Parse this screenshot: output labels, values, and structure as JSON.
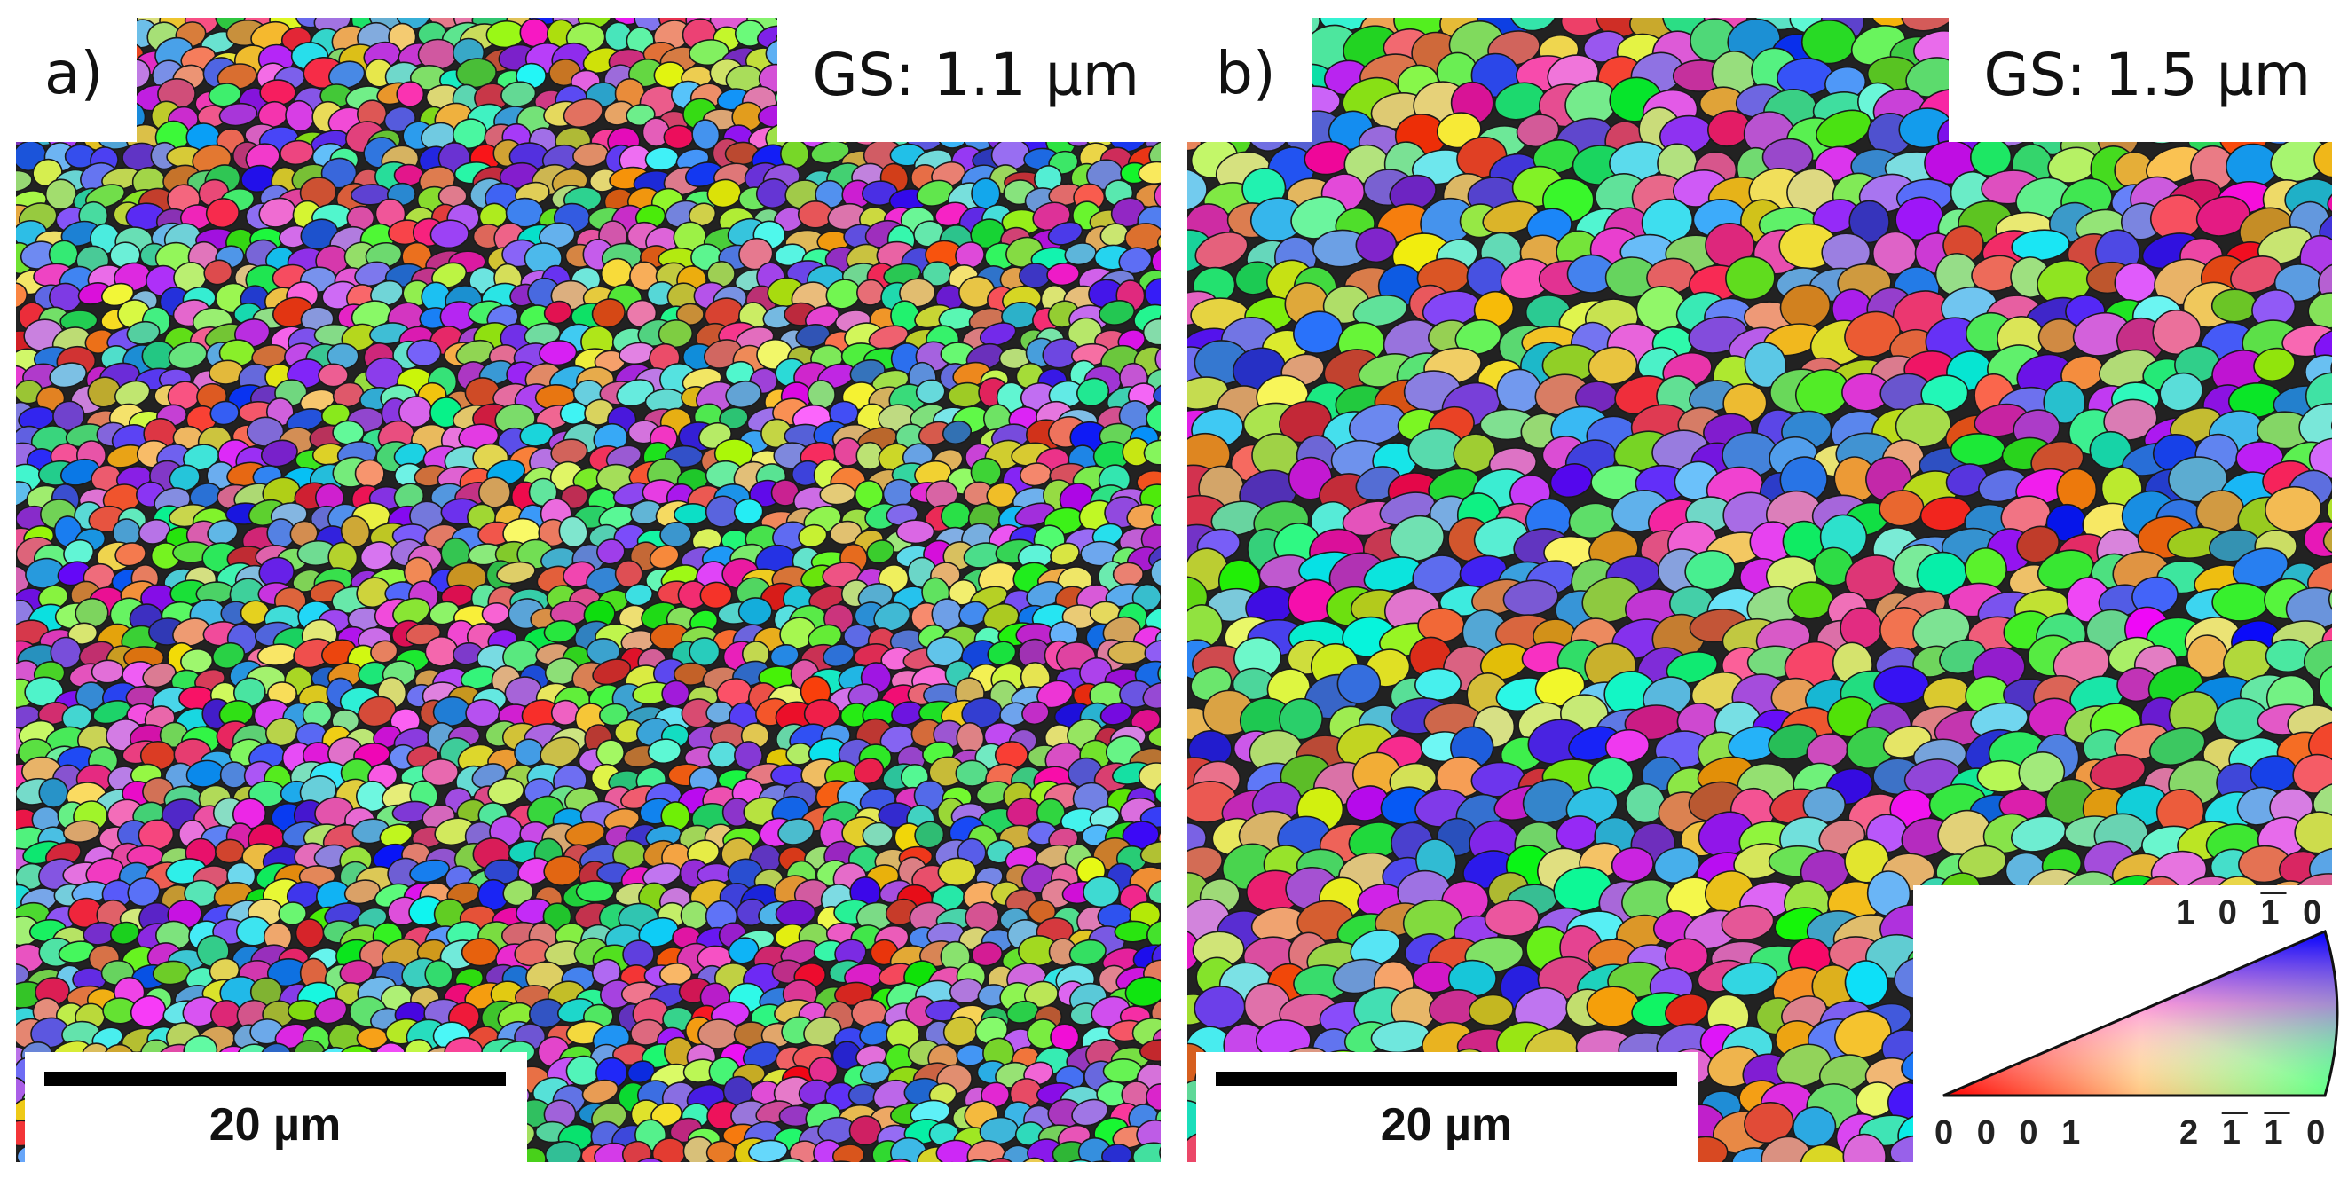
{
  "panels": [
    {
      "label": "a)",
      "grain_size": "GS: 1.1 µm",
      "scale_bar": "20 µm"
    },
    {
      "label": "b)",
      "grain_size": "GS: 1.5 µm",
      "scale_bar": "20 µm"
    }
  ],
  "ipf_key": {
    "corner_left": "0 0 0 1",
    "corner_top": "1 0 1 0",
    "corner_bottom_right": "2 1 1 0",
    "colors": {
      "0001": "#ff0000",
      "10-10": "#0000ff",
      "2-1-10": "#00ff00"
    }
  }
}
